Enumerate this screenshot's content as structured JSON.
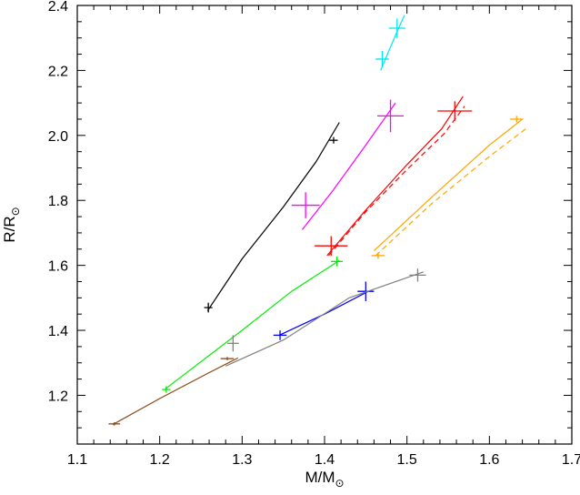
{
  "chart_data": {
    "type": "line",
    "xlabel": "M/M",
    "ylabel": "R/R",
    "label_subscript": "⊙",
    "xlim": [
      1.1,
      1.7
    ],
    "ylim": [
      1.05,
      2.4
    ],
    "x_ticks": [
      1.1,
      1.2,
      1.3,
      1.4,
      1.5,
      1.6,
      1.7
    ],
    "x_tick_labels": [
      "1.1",
      "1.2",
      "1.3",
      "1.4",
      "1.5",
      "1.6",
      "1.7"
    ],
    "y_ticks": [
      1.2,
      1.4,
      1.6,
      1.8,
      2.0,
      2.2,
      2.4
    ],
    "y_tick_labels": [
      "1.2",
      "1.4",
      "1.6",
      "1.8",
      "2.0",
      "2.2",
      "2.4"
    ],
    "grid": false,
    "series": [
      {
        "color": "#00e5ee",
        "line": [
          [
            1.468,
            2.2
          ],
          [
            1.478,
            2.26
          ],
          [
            1.488,
            2.32
          ],
          [
            1.497,
            2.37
          ]
        ],
        "dashed": null,
        "points": [
          {
            "x": 1.47,
            "y": 2.235,
            "ex": 0.008,
            "ey": 0.025
          },
          {
            "x": 1.488,
            "y": 2.33,
            "ex": 0.01,
            "ey": 0.03
          }
        ]
      },
      {
        "color": "#000000",
        "line": [
          [
            1.258,
            1.46
          ],
          [
            1.3,
            1.62
          ],
          [
            1.35,
            1.78
          ],
          [
            1.39,
            1.92
          ],
          [
            1.418,
            2.04
          ]
        ],
        "dashed": null,
        "points": [
          {
            "x": 1.259,
            "y": 1.47,
            "ex": 0.005,
            "ey": 0.015
          },
          {
            "x": 1.411,
            "y": 1.985,
            "ex": 0.005,
            "ey": 0.01
          }
        ]
      },
      {
        "color": "#ff00ff",
        "line": [
          [
            1.373,
            1.71
          ],
          [
            1.41,
            1.83
          ],
          [
            1.45,
            1.97
          ],
          [
            1.486,
            2.1
          ]
        ],
        "dashed": null,
        "points": [
          {
            "x": 1.377,
            "y": 1.785,
            "ex": 0.017,
            "ey": 0.04
          },
          {
            "x": 1.48,
            "y": 2.06,
            "ex": 0.016,
            "ey": 0.05
          }
        ]
      },
      {
        "color": "#ff0000",
        "line": [
          [
            1.403,
            1.63
          ],
          [
            1.45,
            1.77
          ],
          [
            1.5,
            1.91
          ],
          [
            1.542,
            2.02
          ],
          [
            1.568,
            2.12
          ]
        ],
        "dashed": [
          [
            1.405,
            1.63
          ],
          [
            1.45,
            1.765
          ],
          [
            1.5,
            1.895
          ],
          [
            1.545,
            2.005
          ],
          [
            1.57,
            2.09
          ]
        ],
        "points": [
          {
            "x": 1.408,
            "y": 1.66,
            "ex": 0.02,
            "ey": 0.03
          },
          {
            "x": 1.558,
            "y": 2.075,
            "ex": 0.021,
            "ey": 0.03
          }
        ]
      },
      {
        "color": "#ffa500",
        "line": [
          [
            1.46,
            1.645
          ],
          [
            1.53,
            1.81
          ],
          [
            1.6,
            1.97
          ],
          [
            1.64,
            2.05
          ]
        ],
        "dashed": [
          [
            1.462,
            1.63
          ],
          [
            1.53,
            1.79
          ],
          [
            1.6,
            1.935
          ],
          [
            1.644,
            2.02
          ]
        ],
        "points": [
          {
            "x": 1.465,
            "y": 1.63,
            "ex": 0.008,
            "ey": 0.01
          },
          {
            "x": 1.633,
            "y": 2.05,
            "ex": 0.008,
            "ey": 0.01
          }
        ]
      },
      {
        "color": "#00ee00",
        "line": [
          [
            1.207,
            1.22
          ],
          [
            1.3,
            1.4
          ],
          [
            1.36,
            1.52
          ],
          [
            1.418,
            1.615
          ]
        ],
        "dashed": null,
        "points": [
          {
            "x": 1.208,
            "y": 1.218,
            "ex": 0.005,
            "ey": 0.01
          },
          {
            "x": 1.415,
            "y": 1.612,
            "ex": 0.007,
            "ey": 0.015
          }
        ]
      },
      {
        "color": "#0000ff",
        "line": [
          [
            1.345,
            1.385
          ],
          [
            1.4,
            1.45
          ],
          [
            1.453,
            1.52
          ]
        ],
        "dashed": null,
        "points": [
          {
            "x": 1.346,
            "y": 1.385,
            "ex": 0.008,
            "ey": 0.015
          },
          {
            "x": 1.45,
            "y": 1.52,
            "ex": 0.01,
            "ey": 0.03
          }
        ]
      },
      {
        "color": "#808080",
        "line": [
          [
            1.28,
            1.29
          ],
          [
            1.35,
            1.37
          ],
          [
            1.43,
            1.5
          ],
          [
            1.52,
            1.58
          ]
        ],
        "dashed": null,
        "points": [
          {
            "x": 1.289,
            "y": 1.36,
            "ex": 0.007,
            "ey": 0.025
          },
          {
            "x": 1.513,
            "y": 1.57,
            "ex": 0.01,
            "ey": 0.02
          }
        ]
      },
      {
        "color": "#8b4513",
        "line": [
          [
            1.143,
            1.11
          ],
          [
            1.2,
            1.19
          ],
          [
            1.26,
            1.27
          ],
          [
            1.295,
            1.315
          ]
        ],
        "dashed": null,
        "points": [
          {
            "x": 1.145,
            "y": 1.112,
            "ex": 0.007,
            "ey": 0.005
          },
          {
            "x": 1.282,
            "y": 1.313,
            "ex": 0.008,
            "ey": 0.005
          }
        ]
      }
    ]
  }
}
